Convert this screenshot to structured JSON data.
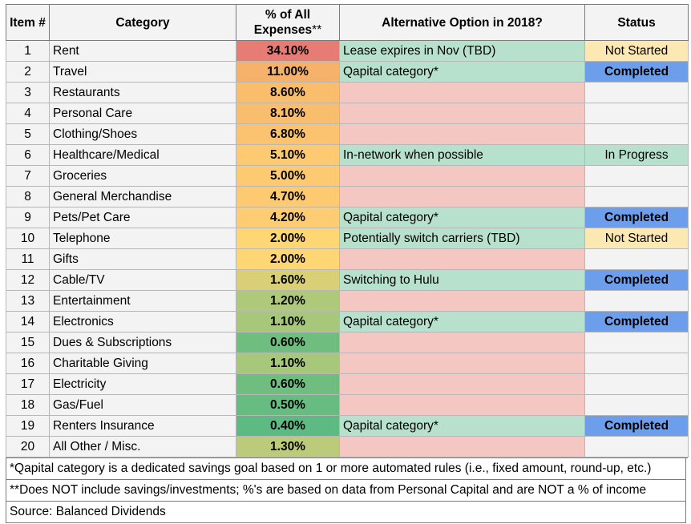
{
  "headers": {
    "item": "Item #",
    "category": "Category",
    "pct_line1": "% of All",
    "pct_line2": "Expenses",
    "pct_sup": "**",
    "alt": "Alternative Option in 2018?",
    "status": "Status"
  },
  "colors": {
    "alt_has_option": "#b7e1cd",
    "alt_none": "#f4c7c3",
    "status_not_started": "#fce8b2",
    "status_completed": "#6d9eeb",
    "status_in_progress": "#b7e1cd",
    "status_blank": "#f3f3f3"
  },
  "rows": [
    {
      "num": "1",
      "category": "Rent",
      "pct": "34.10%",
      "pct_color": "#e67c73",
      "alt": "Lease expires in Nov (TBD)",
      "status": "Not Started",
      "status_type": "not_started"
    },
    {
      "num": "2",
      "category": "Travel",
      "pct": "11.00%",
      "pct_color": "#f6b26b",
      "alt": "Qapital category*",
      "status": "Completed",
      "status_type": "completed"
    },
    {
      "num": "3",
      "category": "Restaurants",
      "pct": "8.60%",
      "pct_color": "#f9bd6c",
      "alt": "",
      "status": "",
      "status_type": "blank"
    },
    {
      "num": "4",
      "category": "Personal Care",
      "pct": "8.10%",
      "pct_color": "#f9be6d",
      "alt": "",
      "status": "",
      "status_type": "blank"
    },
    {
      "num": "5",
      "category": "Clothing/Shoes",
      "pct": "6.80%",
      "pct_color": "#fbc26f",
      "alt": "",
      "status": "",
      "status_type": "blank"
    },
    {
      "num": "6",
      "category": "Healthcare/Medical",
      "pct": "5.10%",
      "pct_color": "#fdc971",
      "alt": "In-network when possible",
      "status": "In Progress",
      "status_type": "in_progress"
    },
    {
      "num": "7",
      "category": "Groceries",
      "pct": "5.00%",
      "pct_color": "#fdc971",
      "alt": "",
      "status": "",
      "status_type": "blank"
    },
    {
      "num": "8",
      "category": "General Merchandise",
      "pct": "4.70%",
      "pct_color": "#fdca72",
      "alt": "",
      "status": "",
      "status_type": "blank"
    },
    {
      "num": "9",
      "category": "Pets/Pet Care",
      "pct": "4.20%",
      "pct_color": "#fdcc73",
      "alt": "Qapital category*",
      "status": "Completed",
      "status_type": "completed"
    },
    {
      "num": "10",
      "category": "Telephone",
      "pct": "2.00%",
      "pct_color": "#fed674",
      "alt": "Potentially switch carriers (TBD)",
      "status": "Not Started",
      "status_type": "not_started"
    },
    {
      "num": "11",
      "category": "Gifts",
      "pct": "2.00%",
      "pct_color": "#fed674",
      "alt": "",
      "status": "",
      "status_type": "blank"
    },
    {
      "num": "12",
      "category": "Cable/TV",
      "pct": "1.60%",
      "pct_color": "#d9cf76",
      "alt": "Switching to Hulu",
      "status": "Completed",
      "status_type": "completed"
    },
    {
      "num": "13",
      "category": "Entertainment",
      "pct": "1.20%",
      "pct_color": "#afc97a",
      "alt": "",
      "status": "",
      "status_type": "blank"
    },
    {
      "num": "14",
      "category": "Electronics",
      "pct": "1.10%",
      "pct_color": "#a7c77a",
      "alt": "Qapital category*",
      "status": "Completed",
      "status_type": "completed"
    },
    {
      "num": "15",
      "category": "Dues & Subscriptions",
      "pct": "0.60%",
      "pct_color": "#6fbe80",
      "alt": "",
      "status": "",
      "status_type": "blank"
    },
    {
      "num": "16",
      "category": "Charitable Giving",
      "pct": "1.10%",
      "pct_color": "#a7c77a",
      "alt": "",
      "status": "",
      "status_type": "blank"
    },
    {
      "num": "17",
      "category": "Electricity",
      "pct": "0.60%",
      "pct_color": "#6fbe80",
      "alt": "",
      "status": "",
      "status_type": "blank"
    },
    {
      "num": "18",
      "category": "Gas/Fuel",
      "pct": "0.50%",
      "pct_color": "#66bc81",
      "alt": "",
      "status": "",
      "status_type": "blank"
    },
    {
      "num": "19",
      "category": "Renters Insurance",
      "pct": "0.40%",
      "pct_color": "#5dba82",
      "alt": "Qapital category*",
      "status": "Completed",
      "status_type": "completed"
    },
    {
      "num": "20",
      "category": "All Other / Misc.",
      "pct": "1.30%",
      "pct_color": "#bccb79",
      "alt": "",
      "status": "",
      "status_type": "blank"
    }
  ],
  "notes": [
    "*Qapital category is a dedicated savings goal based on 1 or more automated rules (i.e., fixed amount, round-up, etc.)",
    "**Does NOT include savings/investments; %'s are based on data from Personal Capital and are NOT a % of income",
    "Source: Balanced Dividends"
  ]
}
